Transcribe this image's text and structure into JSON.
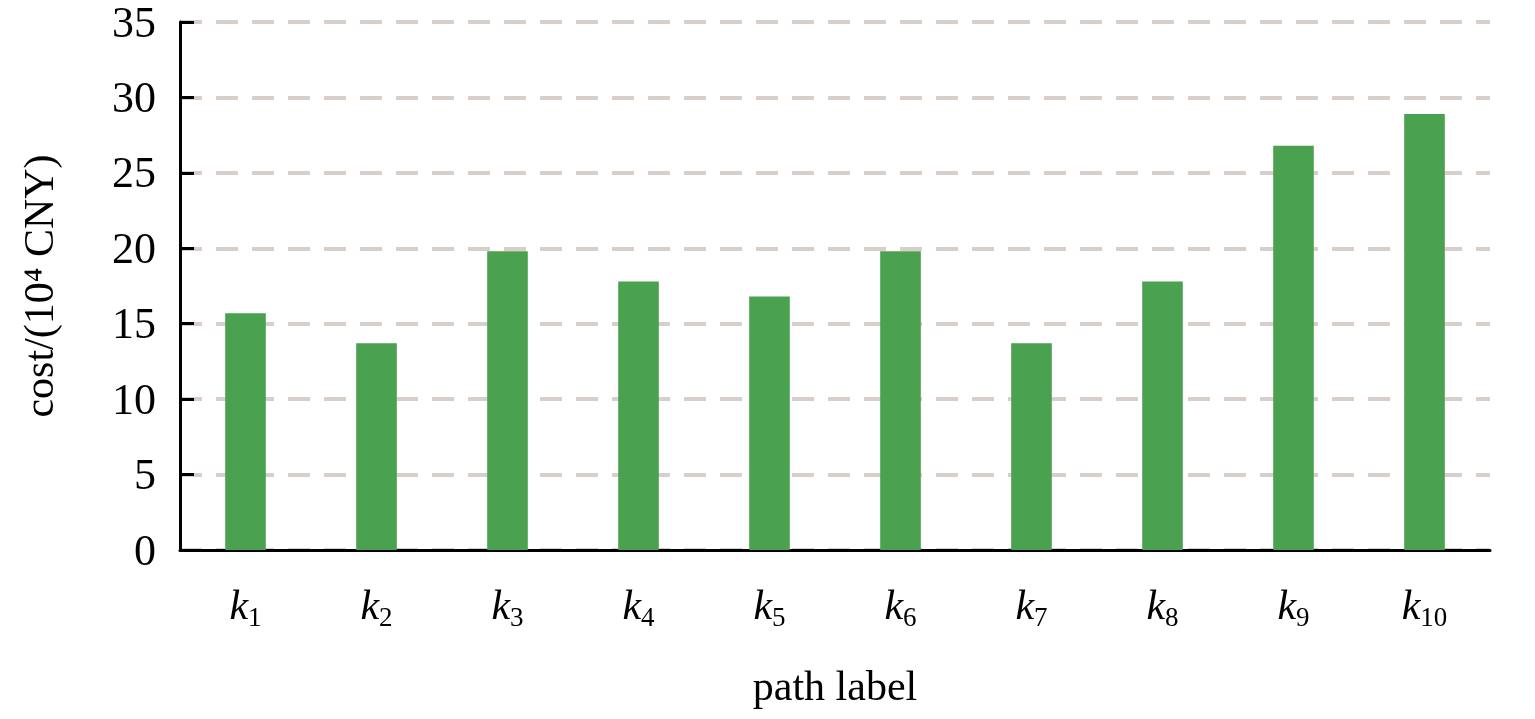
{
  "chart_data": {
    "type": "bar",
    "xlabel": "path label",
    "ylabel": "cost/(10⁴ CNY)",
    "categories": [
      "k$_{1}$",
      "k$_{2}$",
      "k$_{3}$",
      "k$_{4}$",
      "k$_{5}$",
      "k$_{6}$",
      "k$_{7}$",
      "k$_{8}$",
      "k$_{9}$",
      "k$_{10}$"
    ],
    "values": [
      15.7,
      13.7,
      19.8,
      17.8,
      16.8,
      19.8,
      13.7,
      17.8,
      26.8,
      28.9
    ],
    "color": "#4aa14f",
    "ylim": [
      0,
      35
    ],
    "yticks": [
      0,
      5,
      10,
      15,
      20,
      25,
      30,
      35
    ],
    "grid": "y"
  }
}
